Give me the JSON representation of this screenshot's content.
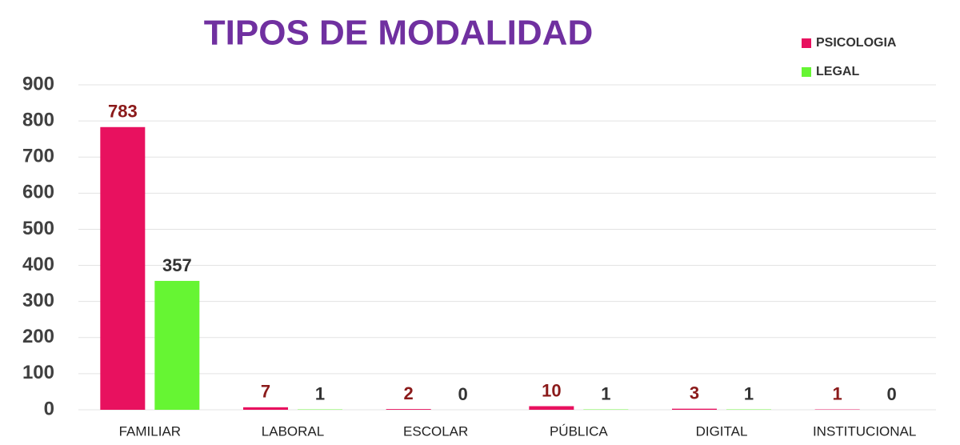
{
  "chart_data": {
    "type": "bar",
    "title": "TIPOS  DE  MODALIDAD",
    "categories": [
      "FAMILIAR",
      "LABORAL",
      "ESCOLAR",
      "PÚBLICA",
      "DIGITAL",
      "INSTITUCIONAL"
    ],
    "series": [
      {
        "name": "PSICOLOGIA",
        "color": "#e8115f",
        "values": [
          783,
          7,
          2,
          10,
          3,
          1
        ]
      },
      {
        "name": "LEGAL",
        "color": "#66f533",
        "values": [
          357,
          1,
          0,
          1,
          1,
          0
        ]
      }
    ],
    "ylim": [
      0,
      900
    ],
    "yticks": [
      0,
      100,
      200,
      300,
      400,
      500,
      600,
      700,
      800,
      900
    ],
    "grid": true,
    "legend": "upper right"
  }
}
